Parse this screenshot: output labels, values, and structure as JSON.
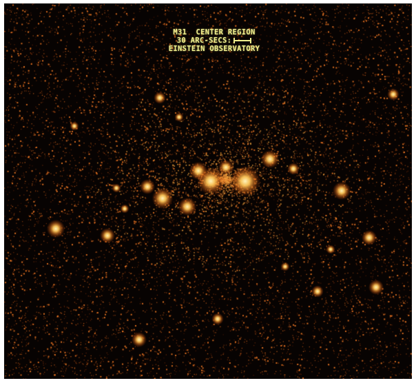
{
  "caption": {
    "line1": "M31  CENTER REGION",
    "line2": "30 ARC-SECS:",
    "line3": "EINSTEIN OBSERVATORY"
  },
  "colors": {
    "background": "#070302",
    "noise": "#c0501a",
    "source_core": "#fff0b0",
    "source_glow": "#ff9a2a",
    "caption_text": "#f1f08e"
  },
  "scale_bar_icon": "scale-bar-icon"
}
